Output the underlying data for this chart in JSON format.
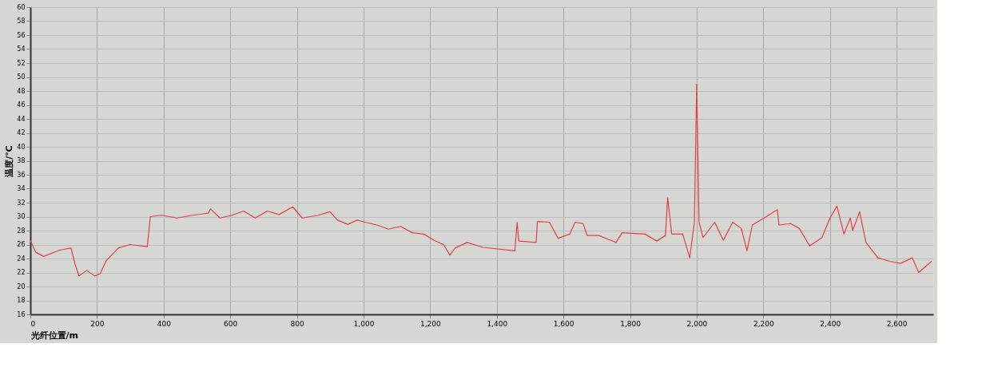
{
  "chart_data": {
    "type": "line",
    "xlabel": "光纤位置/m",
    "ylabel": "温度/℃",
    "xlim": [
      0,
      2710
    ],
    "ylim": [
      16,
      60
    ],
    "xticks": [
      0,
      200,
      400,
      600,
      800,
      {
        "value": 1000,
        "label": "1,000"
      },
      {
        "value": 1200,
        "label": "1,200"
      },
      {
        "value": 1400,
        "label": "1,400"
      },
      {
        "value": 1600,
        "label": "1,600"
      },
      {
        "value": 1800,
        "label": "1,800"
      },
      {
        "value": 2000,
        "label": "2,000"
      },
      {
        "value": 2200,
        "label": "2,200"
      },
      {
        "value": 2400,
        "label": "2,400"
      },
      {
        "value": 2600,
        "label": "2,600"
      }
    ],
    "yticks": [
      16,
      18,
      20,
      22,
      24,
      26,
      28,
      30,
      32,
      34,
      36,
      38,
      40,
      42,
      44,
      46,
      48,
      50,
      52,
      54,
      56,
      58,
      60
    ],
    "grid": true,
    "marker": "none",
    "line_style": "solid",
    "series": [
      {
        "color": "#e0404c",
        "x": [
          0,
          16,
          40,
          87,
          122,
          134,
          146,
          169,
          193,
          209,
          228,
          264,
          299,
          351,
          360,
          393,
          440,
          487,
          534,
          541,
          569,
          605,
          640,
          675,
          711,
          746,
          788,
          816,
          864,
          899,
          922,
          953,
          981,
          1005,
          1040,
          1075,
          1111,
          1146,
          1181,
          1212,
          1240,
          1259,
          1275,
          1311,
          1358,
          1454,
          1461,
          1466,
          1518,
          1522,
          1558,
          1584,
          1619,
          1635,
          1659,
          1671,
          1706,
          1758,
          1776,
          1845,
          1880,
          1906,
          1913,
          1925,
          1958,
          1979,
          1993,
          2000,
          2007,
          2019,
          2054,
          2080,
          2108,
          2134,
          2151,
          2167,
          2202,
          2242,
          2247,
          2282,
          2308,
          2339,
          2376,
          2400,
          2421,
          2442,
          2461,
          2468,
          2489,
          2508,
          2544,
          2579,
          2612,
          2647,
          2666,
          2705
        ],
        "values": [
          26.6,
          24.9,
          24.3,
          25.2,
          25.5,
          23.2,
          21.5,
          22.3,
          21.5,
          21.8,
          23.7,
          25.5,
          26,
          25.7,
          30,
          30.2,
          29.8,
          30.2,
          30.5,
          31.1,
          29.8,
          30.2,
          30.8,
          29.8,
          30.8,
          30.3,
          31.4,
          29.8,
          30.2,
          30.7,
          29.5,
          28.9,
          29.5,
          29.2,
          28.8,
          28.2,
          28.6,
          27.7,
          27.5,
          26.6,
          26,
          24.5,
          25.5,
          26.3,
          25.6,
          25.1,
          29.2,
          26.5,
          26.3,
          29.3,
          29.2,
          26.9,
          27.5,
          29.2,
          29,
          27.3,
          27.3,
          26.3,
          27.7,
          27.5,
          26.5,
          27.3,
          32.7,
          27.5,
          27.5,
          24.1,
          29.2,
          49,
          29.2,
          27,
          29.2,
          26.6,
          29.2,
          28.3,
          25.1,
          28.8,
          29.8,
          31,
          28.8,
          29,
          28.3,
          25.8,
          27,
          29.8,
          31.5,
          27.5,
          29.8,
          28,
          30.7,
          26.3,
          24.1,
          23.6,
          23.3,
          24.1,
          22,
          23.6
        ]
      }
    ]
  }
}
